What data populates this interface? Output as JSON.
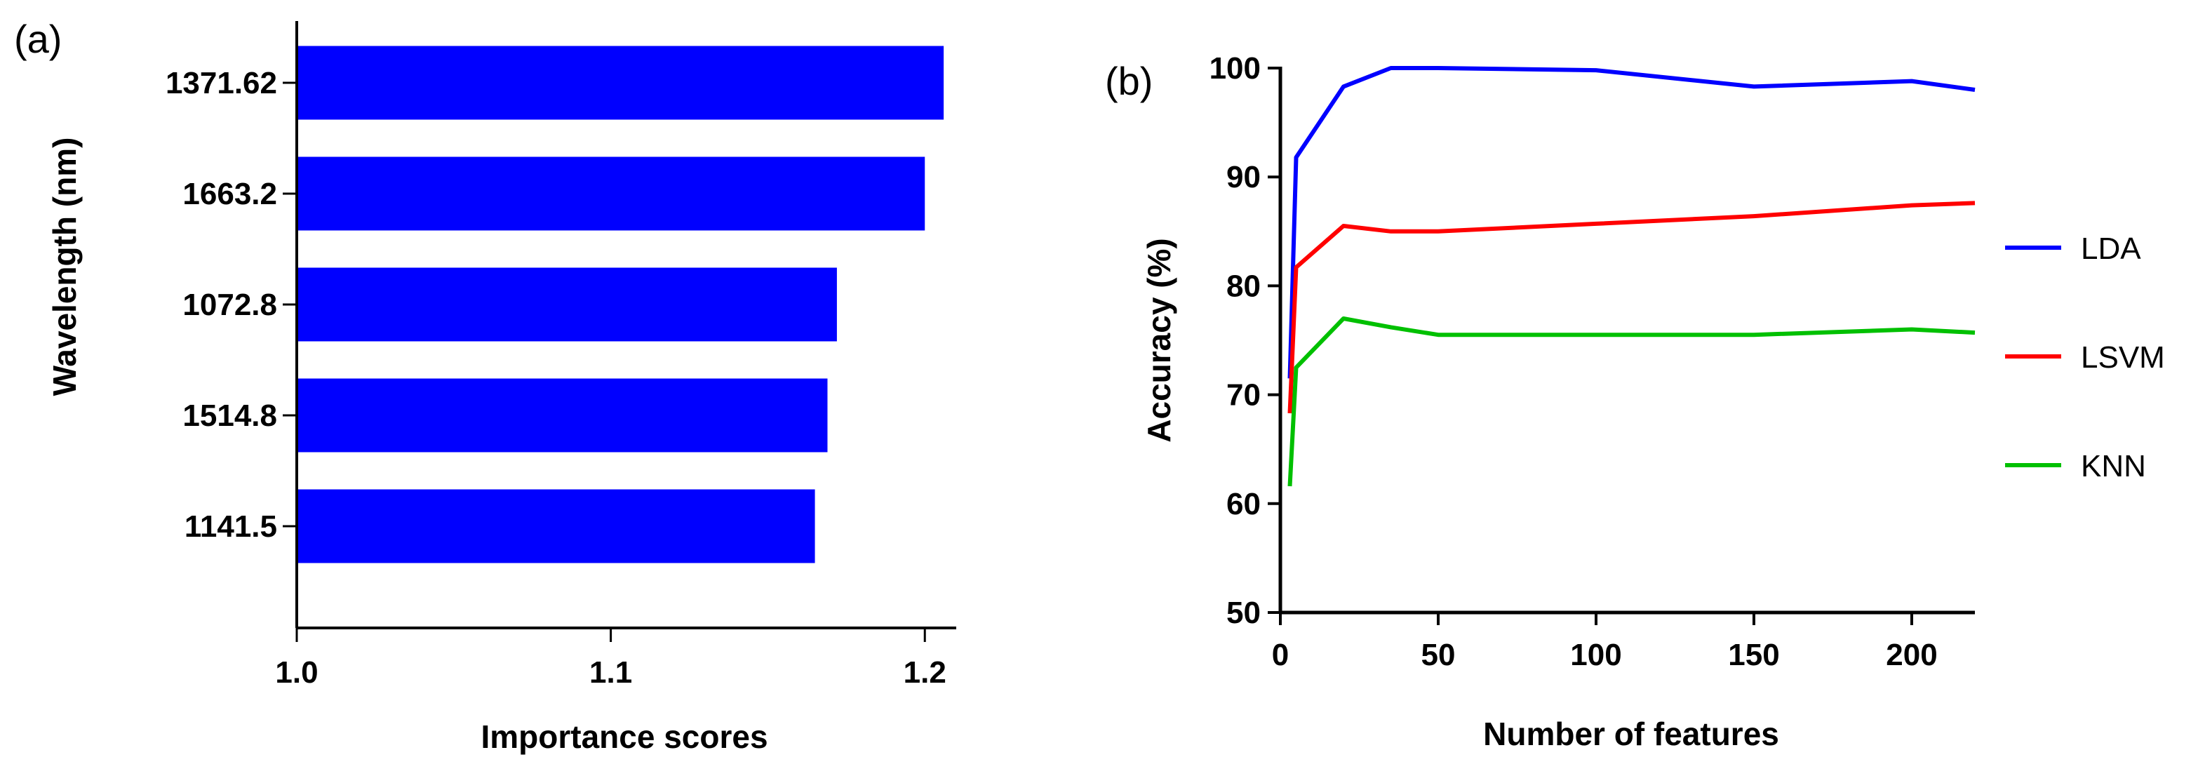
{
  "chart_data": [
    {
      "type": "bar",
      "orientation": "horizontal",
      "panel_label": "(a)",
      "categories": [
        "1371.62",
        "1663.2",
        "1072.8",
        "1514.8",
        "1141.5"
      ],
      "values": [
        1.206,
        1.2,
        1.172,
        1.169,
        1.165
      ],
      "xlabel": "Importance scores",
      "ylabel": "Wavelength (nm)",
      "xlim": [
        1.0,
        1.21
      ],
      "xticks": [
        "1.0",
        "1.1",
        "1.2"
      ],
      "bar_color": "#0000ff",
      "grid": false
    },
    {
      "type": "line",
      "panel_label": "(b)",
      "xlabel": "Number of features",
      "ylabel": "Accuracy (%)",
      "xlim": [
        0,
        220
      ],
      "ylim": [
        50,
        100
      ],
      "xticks": [
        "0",
        "50",
        "100",
        "150",
        "200"
      ],
      "yticks": [
        "50",
        "60",
        "70",
        "80",
        "90",
        "100"
      ],
      "legend_position": "right",
      "grid": false,
      "series": [
        {
          "name": "LDA",
          "color": "#0000ff",
          "x": [
            3,
            5,
            20,
            35,
            50,
            100,
            150,
            200,
            220
          ],
          "y": [
            71.5,
            91.8,
            98.3,
            100,
            100,
            99.8,
            98.3,
            98.8,
            98.0
          ]
        },
        {
          "name": "LSVM",
          "color": "#ff0000",
          "x": [
            3,
            5,
            20,
            35,
            50,
            100,
            150,
            200,
            220
          ],
          "y": [
            68.3,
            81.7,
            85.5,
            85.0,
            85.0,
            85.7,
            86.4,
            87.4,
            87.6
          ]
        },
        {
          "name": "KNN",
          "color": "#00c000",
          "x": [
            3,
            5,
            20,
            35,
            50,
            100,
            150,
            200,
            220
          ],
          "y": [
            61.6,
            72.5,
            77.0,
            76.2,
            75.5,
            75.5,
            75.5,
            76.0,
            75.7
          ]
        }
      ]
    }
  ]
}
